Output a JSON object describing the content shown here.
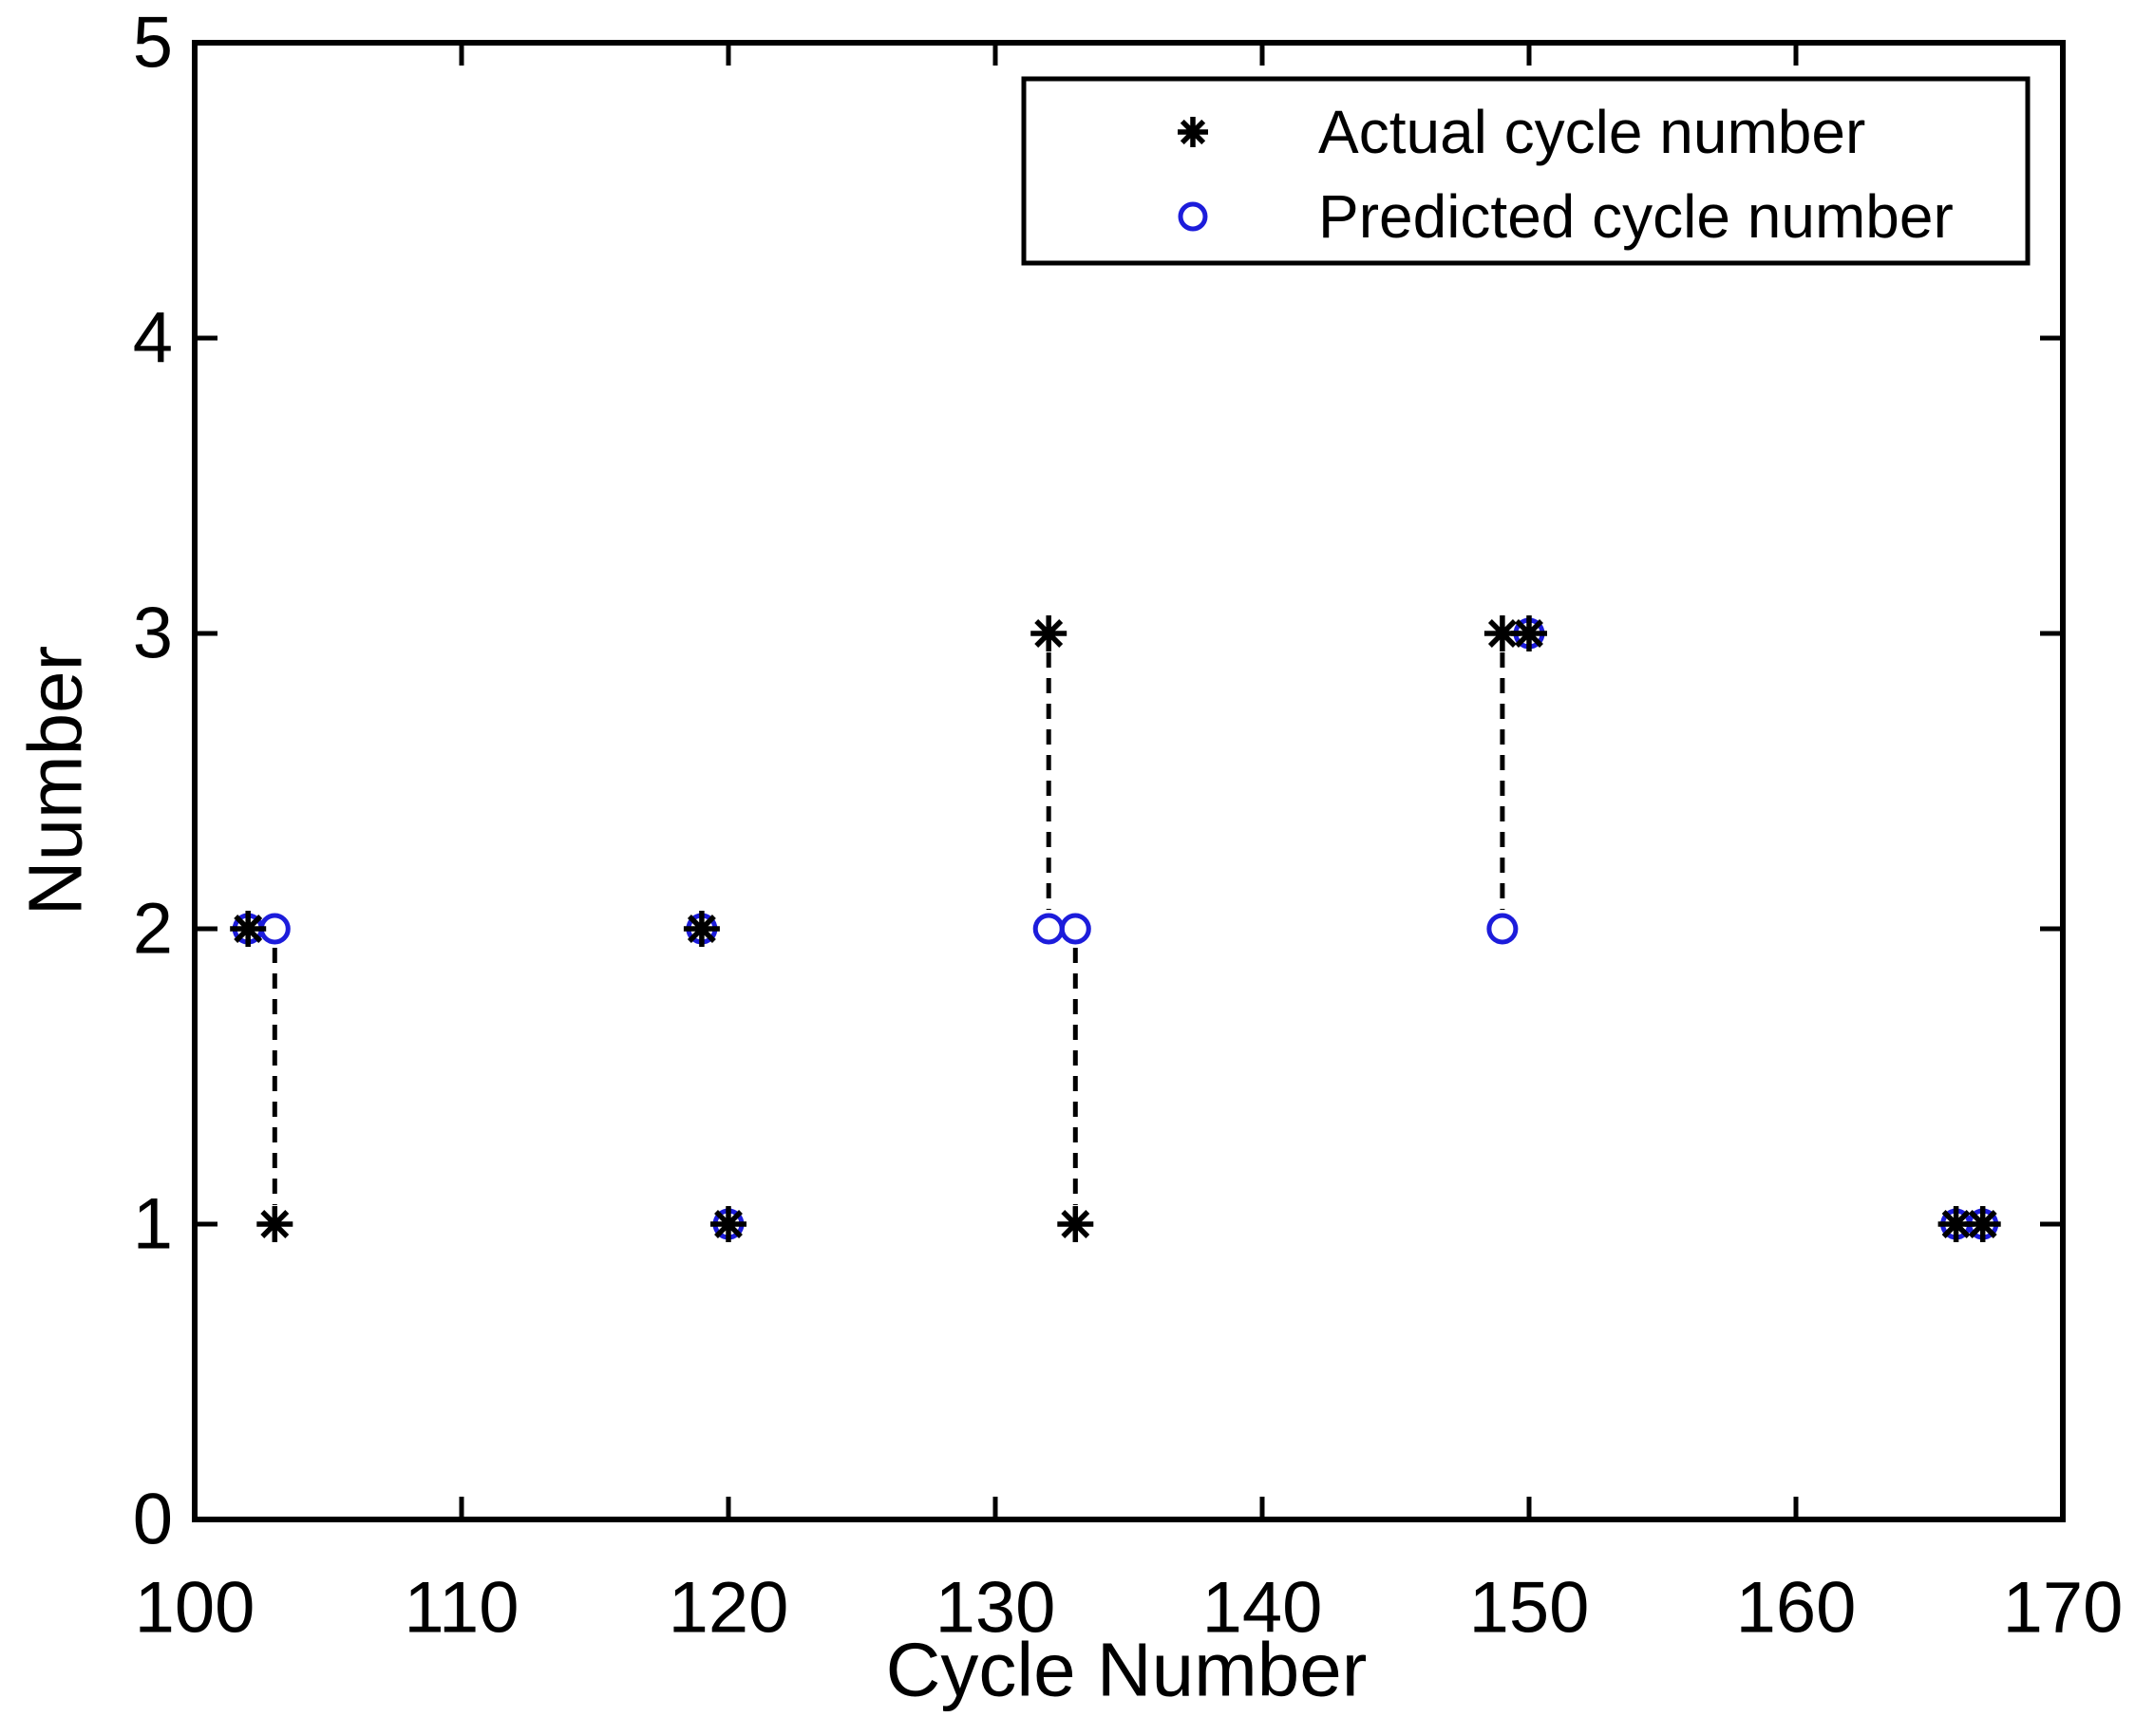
{
  "figure": {
    "background": "#ffffff",
    "frame_color": "#000000"
  },
  "chart_data": {
    "type": "scatter",
    "title": "",
    "xlabel": "Cycle Number",
    "ylabel": "Number",
    "xlim": [
      100,
      170
    ],
    "ylim": [
      0,
      5
    ],
    "xticks": [
      100,
      110,
      120,
      130,
      140,
      150,
      160,
      170
    ],
    "yticks": [
      0,
      1,
      2,
      3,
      4,
      5
    ],
    "grid": false,
    "legend": {
      "position": "top-right",
      "border": true,
      "entries": [
        {
          "label": "Actual cycle number",
          "marker": "asterisk",
          "color": "#000000"
        },
        {
          "label": "Predicted cycle number",
          "marker": "circle",
          "color": "#1c1cdb"
        }
      ]
    },
    "series": [
      {
        "name": "Actual cycle number",
        "marker": "asterisk",
        "color": "#000000",
        "points": [
          {
            "x": 102,
            "y": 2
          },
          {
            "x": 103,
            "y": 1
          },
          {
            "x": 119,
            "y": 2
          },
          {
            "x": 120,
            "y": 1
          },
          {
            "x": 132,
            "y": 3
          },
          {
            "x": 133,
            "y": 1
          },
          {
            "x": 149,
            "y": 3
          },
          {
            "x": 150,
            "y": 3
          },
          {
            "x": 166,
            "y": 1
          },
          {
            "x": 167,
            "y": 1
          }
        ]
      },
      {
        "name": "Predicted cycle number",
        "marker": "circle",
        "color": "#1c1cdb",
        "points": [
          {
            "x": 102,
            "y": 2
          },
          {
            "x": 103,
            "y": 2
          },
          {
            "x": 119,
            "y": 2
          },
          {
            "x": 120,
            "y": 1
          },
          {
            "x": 132,
            "y": 2
          },
          {
            "x": 133,
            "y": 2
          },
          {
            "x": 149,
            "y": 2
          },
          {
            "x": 150,
            "y": 3
          },
          {
            "x": 166,
            "y": 1
          },
          {
            "x": 167,
            "y": 1
          }
        ]
      }
    ],
    "connectors": {
      "style": "dashed",
      "color": "#000000",
      "pairs": [
        {
          "x": 103,
          "y1": 1,
          "y2": 2
        },
        {
          "x": 132,
          "y1": 2,
          "y2": 3
        },
        {
          "x": 133,
          "y1": 1,
          "y2": 2
        },
        {
          "x": 149,
          "y1": 2,
          "y2": 3
        }
      ]
    }
  }
}
